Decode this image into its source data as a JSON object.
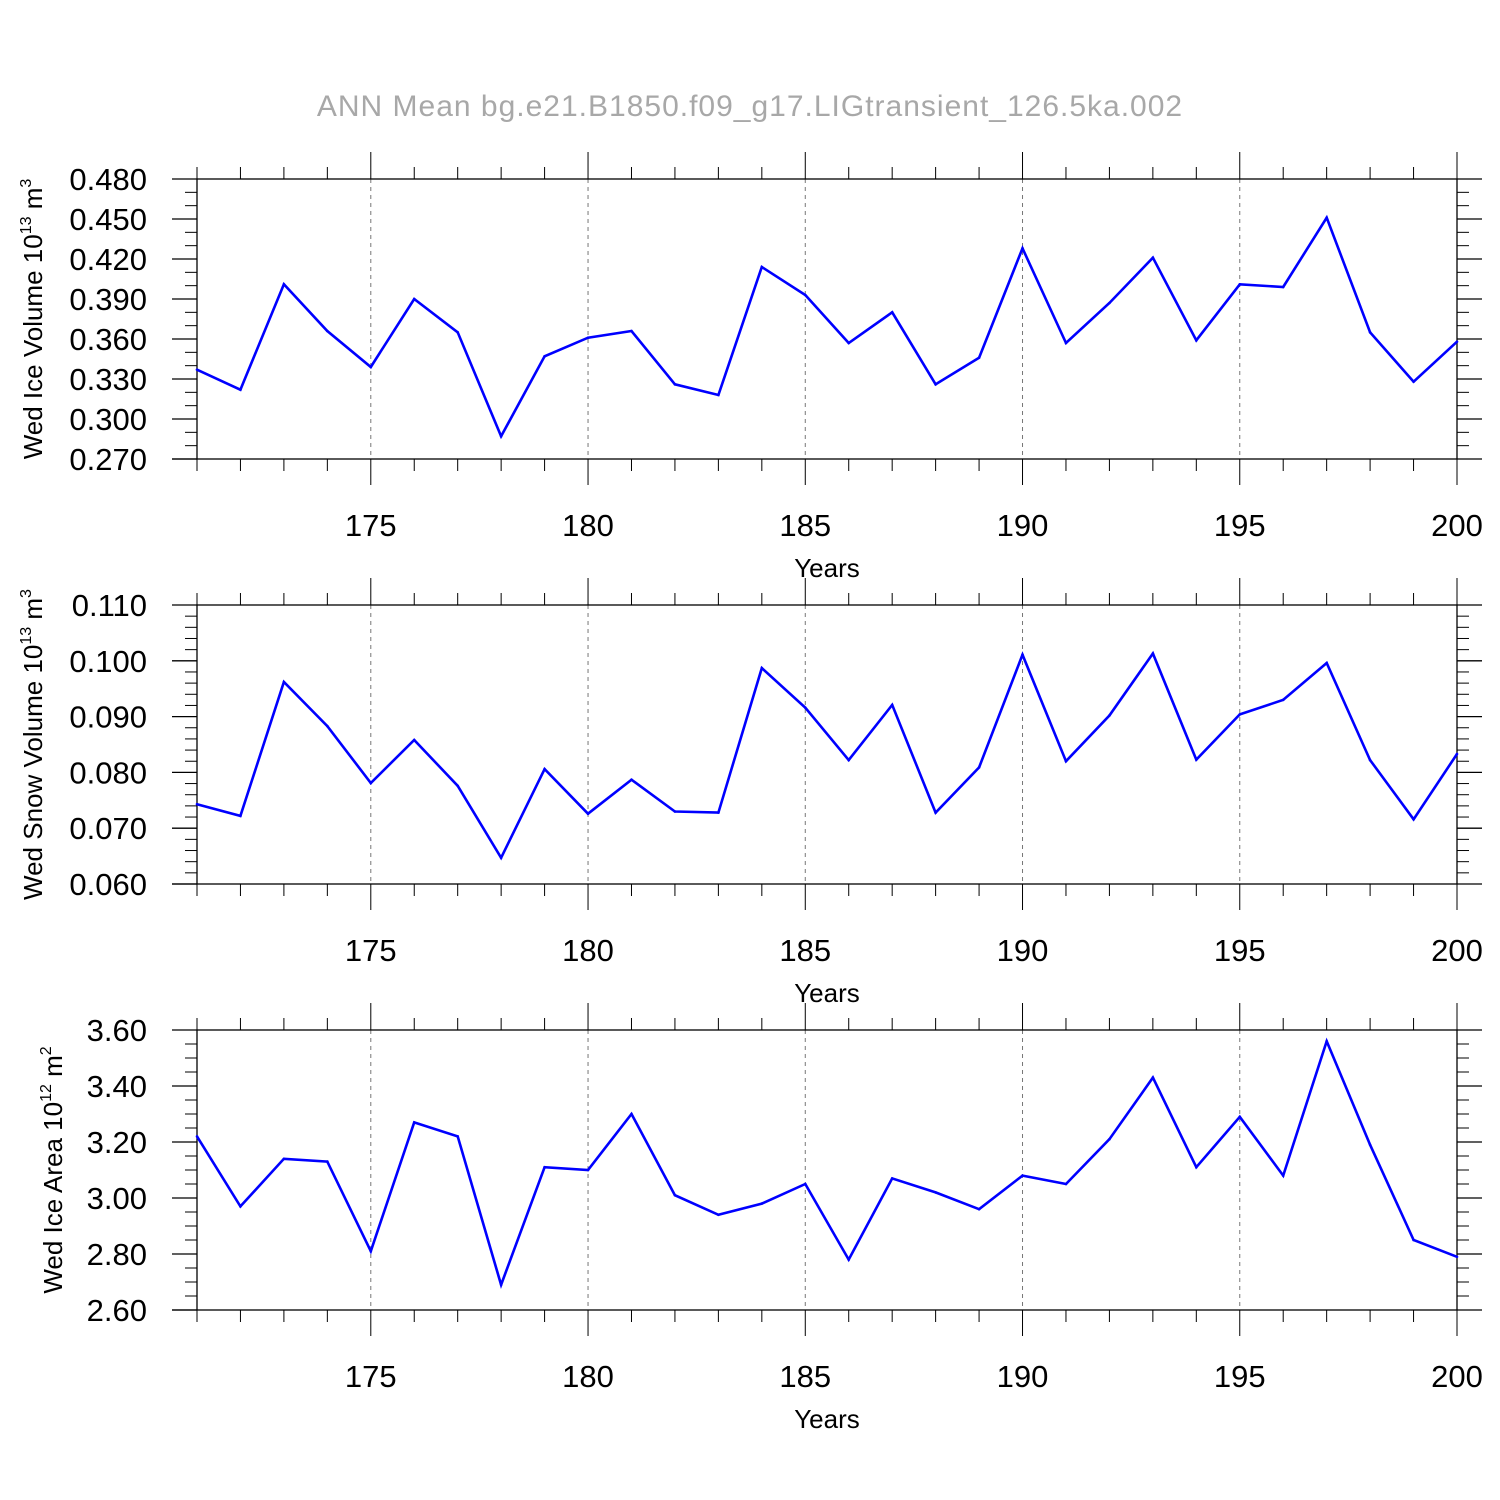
{
  "figure": {
    "title": "ANN Mean bg.e21.B1850.f09_g17.LIGtransient_126.5ka.002"
  },
  "chart_data": [
    {
      "type": "line",
      "xlabel": "Years",
      "ylabel": {
        "text": "Wed Ice Volume 10",
        "exp": "13",
        "unit": " m",
        "unit_exp": "3"
      },
      "xlim": [
        171,
        200
      ],
      "ylim": [
        0.27,
        0.48
      ],
      "x_ticks": [
        175,
        180,
        185,
        190,
        195,
        200
      ],
      "y_ticks": [
        "0.270",
        "0.300",
        "0.330",
        "0.360",
        "0.390",
        "0.420",
        "0.450",
        "0.480"
      ],
      "grid_x": [
        175,
        180,
        185,
        190,
        195
      ],
      "line_color": "#0000ff",
      "x": [
        171,
        172,
        173,
        174,
        175,
        176,
        177,
        178,
        179,
        180,
        181,
        182,
        183,
        184,
        185,
        186,
        187,
        188,
        189,
        190,
        191,
        192,
        193,
        194,
        195,
        196,
        197,
        198,
        199,
        200
      ],
      "y": [
        0.337,
        0.322,
        0.401,
        0.366,
        0.339,
        0.39,
        0.365,
        0.287,
        0.347,
        0.361,
        0.366,
        0.326,
        0.318,
        0.414,
        0.393,
        0.357,
        0.38,
        0.326,
        0.346,
        0.428,
        0.357,
        0.387,
        0.421,
        0.359,
        0.401,
        0.399,
        0.451,
        0.365,
        0.328,
        0.358
      ]
    },
    {
      "type": "line",
      "xlabel": "Years",
      "ylabel": {
        "text": "Wed Snow Volume 10",
        "exp": "13",
        "unit": " m",
        "unit_exp": "3"
      },
      "xlim": [
        171,
        200
      ],
      "ylim": [
        0.06,
        0.11
      ],
      "x_ticks": [
        175,
        180,
        185,
        190,
        195,
        200
      ],
      "y_ticks": [
        "0.060",
        "0.070",
        "0.080",
        "0.090",
        "0.100",
        "0.110"
      ],
      "grid_x": [
        175,
        180,
        185,
        190,
        195
      ],
      "line_color": "#0000ff",
      "x": [
        171,
        172,
        173,
        174,
        175,
        176,
        177,
        178,
        179,
        180,
        181,
        182,
        183,
        184,
        185,
        186,
        187,
        188,
        189,
        190,
        191,
        192,
        193,
        194,
        195,
        196,
        197,
        198,
        199,
        200
      ],
      "y": [
        0.0743,
        0.0722,
        0.0962,
        0.0883,
        0.0781,
        0.0858,
        0.0776,
        0.0647,
        0.0806,
        0.0726,
        0.0787,
        0.073,
        0.0728,
        0.0987,
        0.0916,
        0.0822,
        0.0921,
        0.0728,
        0.0809,
        0.1011,
        0.082,
        0.0902,
        0.1013,
        0.0823,
        0.0904,
        0.093,
        0.0996,
        0.0822,
        0.0716,
        0.0833
      ]
    },
    {
      "type": "line",
      "xlabel": "Years",
      "ylabel": {
        "text": "Wed Ice Area 10",
        "exp": "12",
        "unit": " m",
        "unit_exp": "2"
      },
      "xlim": [
        171,
        200
      ],
      "ylim": [
        2.6,
        3.6
      ],
      "x_ticks": [
        175,
        180,
        185,
        190,
        195,
        200
      ],
      "y_ticks": [
        "2.60",
        "2.80",
        "3.00",
        "3.20",
        "3.40",
        "3.60"
      ],
      "grid_x": [
        175,
        180,
        185,
        190,
        195
      ],
      "line_color": "#0000ff",
      "x": [
        171,
        172,
        173,
        174,
        175,
        176,
        177,
        178,
        179,
        180,
        181,
        182,
        183,
        184,
        185,
        186,
        187,
        188,
        189,
        190,
        191,
        192,
        193,
        194,
        195,
        196,
        197,
        198,
        199,
        200
      ],
      "y": [
        3.22,
        2.97,
        3.14,
        3.13,
        2.81,
        3.27,
        3.22,
        2.69,
        3.11,
        3.1,
        3.3,
        3.01,
        2.94,
        2.98,
        3.05,
        2.78,
        3.07,
        3.02,
        2.96,
        3.08,
        3.05,
        3.21,
        3.43,
        3.11,
        3.29,
        3.08,
        3.56,
        3.19,
        2.85,
        2.79
      ]
    }
  ]
}
